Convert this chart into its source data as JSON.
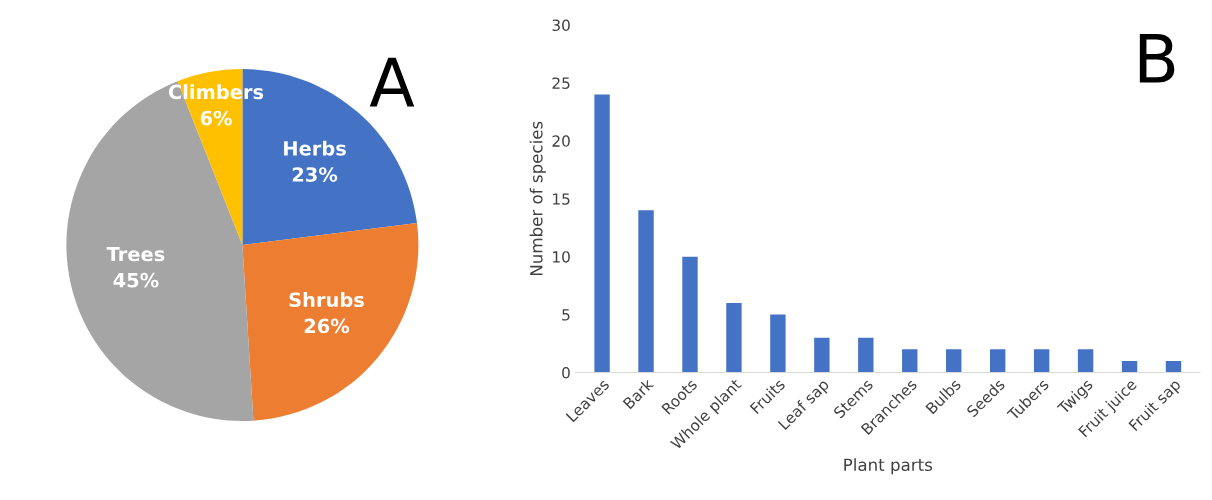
{
  "chart_data": [
    {
      "type": "pie",
      "categories": [
        "Herbs",
        "Shrubs",
        "Trees",
        "Climbers"
      ],
      "values": [
        23,
        26,
        45,
        6
      ],
      "colors": [
        "#4472c4",
        "#ed7d31",
        "#a5a5a5",
        "#ffc000"
      ],
      "value_labels": [
        "23%",
        "26%",
        "45%",
        "6%"
      ],
      "annotations": [
        "A"
      ]
    },
    {
      "type": "bar",
      "categories": [
        "Leaves",
        "Bark",
        "Roots",
        "Whole plant",
        "Fruits",
        "Leaf sap",
        "Stems",
        "Branches",
        "Bulbs",
        "Seeds",
        "Tubers",
        "Twigs",
        "Fruit juice",
        "Fruit sap"
      ],
      "values": [
        24,
        14,
        10,
        6,
        5,
        3,
        3,
        2,
        2,
        2,
        2,
        2,
        1,
        1
      ],
      "color": "#4472c4",
      "xlabel": "Plant parts",
      "ylabel": "Number of species",
      "ylim": [
        0,
        30
      ],
      "yticks": [
        0,
        5,
        10,
        15,
        20,
        25,
        30
      ],
      "grid": false,
      "annotations": [
        "B"
      ]
    }
  ]
}
